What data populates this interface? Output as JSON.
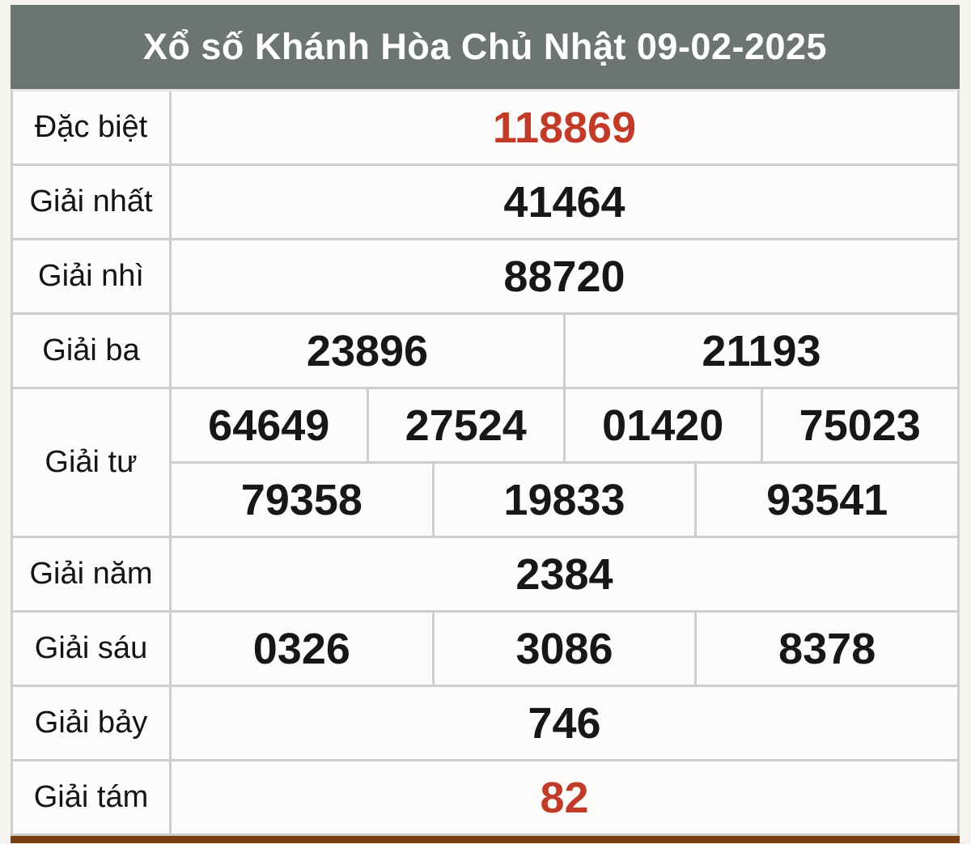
{
  "title": "Xổ số Khánh Hòa Chủ Nhật 09-02-2025",
  "colors": {
    "header_bg": "#6d7572",
    "header_text": "#ffffff",
    "number_text": "#171717",
    "accent_red": "#c23b29",
    "grid_line": "#cdcdcd",
    "bottom_bar": "#7a3e10"
  },
  "prizes": {
    "dac_biet": {
      "label": "Đặc biệt",
      "values": [
        "118869"
      ]
    },
    "giai_nhat": {
      "label": "Giải nhất",
      "values": [
        "41464"
      ]
    },
    "giai_nhi": {
      "label": "Giải nhì",
      "values": [
        "88720"
      ]
    },
    "giai_ba": {
      "label": "Giải ba",
      "values": [
        "23896",
        "21193"
      ]
    },
    "giai_tu": {
      "label": "Giải tư",
      "row1": [
        "64649",
        "27524",
        "01420",
        "75023"
      ],
      "row2": [
        "79358",
        "19833",
        "93541"
      ]
    },
    "giai_nam": {
      "label": "Giải năm",
      "values": [
        "2384"
      ]
    },
    "giai_sau": {
      "label": "Giải sáu",
      "values": [
        "0326",
        "3086",
        "8378"
      ]
    },
    "giai_bay": {
      "label": "Giải bảy",
      "values": [
        "746"
      ]
    },
    "giai_tam": {
      "label": "Giải tám",
      "values": [
        "82"
      ]
    }
  }
}
